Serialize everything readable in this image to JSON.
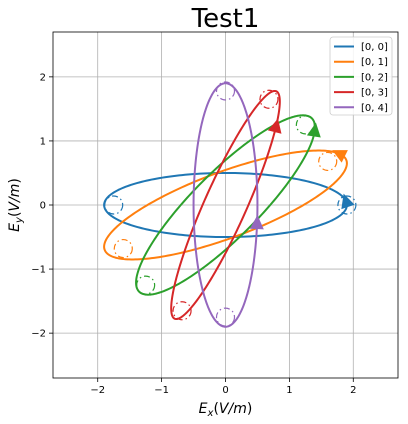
{
  "chart_data": {
    "type": "line",
    "title": "Test1",
    "xlabel": "E_x(V/m)",
    "ylabel": "E_y(V/m)",
    "xlim": [
      -2.7,
      2.7
    ],
    "ylim": [
      -2.7,
      2.7
    ],
    "xticks": [
      -2,
      -1,
      0,
      1,
      2
    ],
    "yticks": [
      -2,
      -1,
      0,
      1,
      2
    ],
    "xtick_labels": [
      "−2",
      "−1",
      "0",
      "1",
      "2"
    ],
    "ytick_labels": [
      "−2",
      "−1",
      "0",
      "1",
      "2"
    ],
    "grid": true,
    "legend_position": "top-right",
    "series": [
      {
        "name": "[0, 0]",
        "color": "#1f77b4",
        "ellipse": {
          "amp_x": 1.9,
          "amp_y": 0.5,
          "phase_y_deg": 90
        },
        "arrow_at": [
          1.9,
          0.05
        ],
        "markers": [
          [
            1.9,
            0.0
          ],
          [
            -1.75,
            0.0
          ]
        ]
      },
      {
        "name": "[0, 1]",
        "color": "#ff7f0e",
        "ellipse": {
          "amp_x": 1.9,
          "amp_y": 0.85,
          "phase_y_deg": 40
        },
        "arrow_at": [
          1.75,
          0.7
        ],
        "markers": [
          [
            1.6,
            0.68
          ],
          [
            -1.6,
            -0.68
          ]
        ]
      },
      {
        "name": "[0, 2]",
        "color": "#2ca02c",
        "ellipse": {
          "amp_x": 1.4,
          "amp_y": 1.4,
          "phase_y_deg": 30
        },
        "arrow_at": [
          1.35,
          1.15
        ],
        "markers": [
          [
            1.25,
            1.25
          ],
          [
            -1.25,
            -1.25
          ]
        ]
      },
      {
        "name": "[0, 3]",
        "color": "#d62728",
        "ellipse": {
          "amp_x": 0.85,
          "amp_y": 1.78,
          "phase_y_deg": 25
        },
        "arrow_at": [
          0.85,
          1.2
        ],
        "markers": [
          [
            0.68,
            1.65
          ],
          [
            -0.68,
            -1.65
          ]
        ]
      },
      {
        "name": "[0, 4]",
        "color": "#9467bd",
        "ellipse": {
          "amp_x": 0.5,
          "amp_y": 1.9,
          "phase_y_deg": 90
        },
        "arrow_at": [
          0.5,
          -0.3
        ],
        "markers": [
          [
            0.0,
            1.78
          ],
          [
            0.0,
            -1.75
          ]
        ]
      }
    ]
  }
}
